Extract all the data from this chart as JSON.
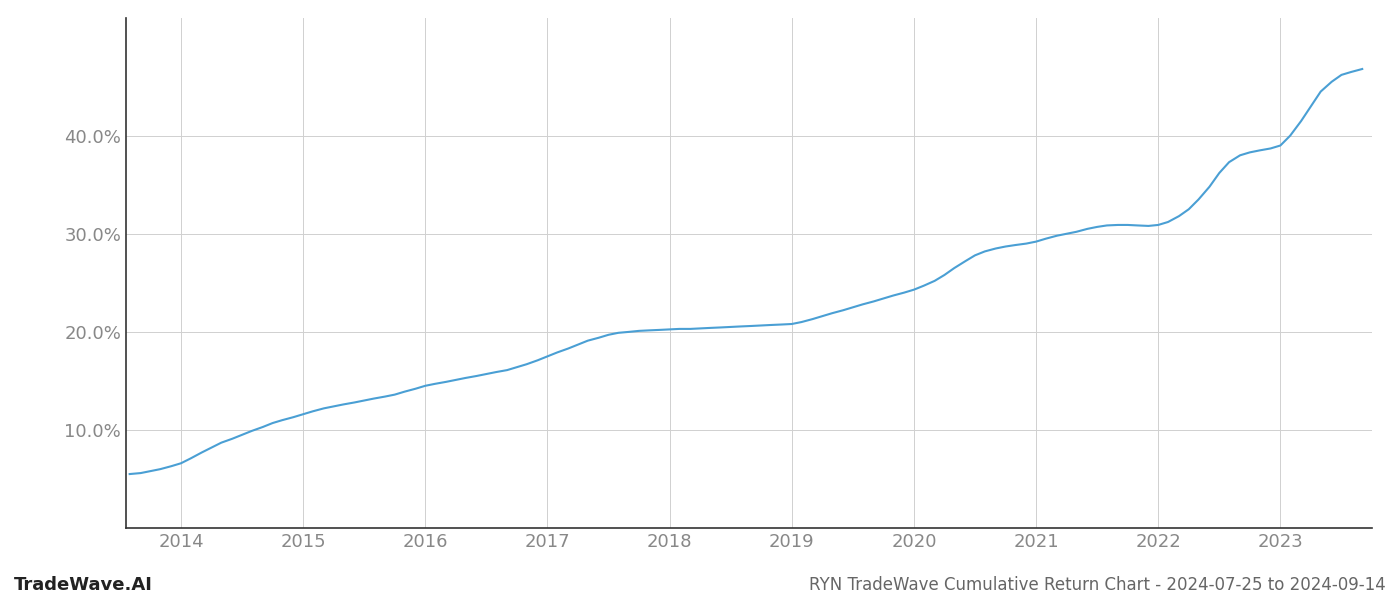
{
  "title": "RYN TradeWave Cumulative Return Chart - 2024-07-25 to 2024-09-14",
  "watermark": "TradeWave.AI",
  "line_color": "#4a9fd4",
  "background_color": "#ffffff",
  "grid_color": "#d0d0d0",
  "axis_color": "#888888",
  "spine_color": "#333333",
  "x_values": [
    2013.58,
    2013.67,
    2013.75,
    2013.83,
    2013.92,
    2014.0,
    2014.08,
    2014.17,
    2014.25,
    2014.33,
    2014.42,
    2014.5,
    2014.58,
    2014.67,
    2014.75,
    2014.83,
    2014.92,
    2015.0,
    2015.08,
    2015.17,
    2015.25,
    2015.33,
    2015.42,
    2015.5,
    2015.58,
    2015.67,
    2015.75,
    2015.83,
    2015.92,
    2016.0,
    2016.08,
    2016.17,
    2016.25,
    2016.33,
    2016.42,
    2016.5,
    2016.58,
    2016.67,
    2016.75,
    2016.83,
    2016.92,
    2017.0,
    2017.08,
    2017.17,
    2017.25,
    2017.33,
    2017.42,
    2017.5,
    2017.58,
    2017.67,
    2017.75,
    2017.83,
    2017.92,
    2018.0,
    2018.08,
    2018.17,
    2018.25,
    2018.33,
    2018.42,
    2018.5,
    2018.58,
    2018.67,
    2018.75,
    2018.83,
    2018.92,
    2019.0,
    2019.08,
    2019.17,
    2019.25,
    2019.33,
    2019.42,
    2019.5,
    2019.58,
    2019.67,
    2019.75,
    2019.83,
    2019.92,
    2020.0,
    2020.08,
    2020.17,
    2020.25,
    2020.33,
    2020.42,
    2020.5,
    2020.58,
    2020.67,
    2020.75,
    2020.83,
    2020.92,
    2021.0,
    2021.08,
    2021.17,
    2021.25,
    2021.33,
    2021.42,
    2021.5,
    2021.58,
    2021.67,
    2021.75,
    2021.83,
    2021.92,
    2022.0,
    2022.08,
    2022.17,
    2022.25,
    2022.33,
    2022.42,
    2022.5,
    2022.58,
    2022.67,
    2022.75,
    2022.83,
    2022.92,
    2023.0,
    2023.08,
    2023.17,
    2023.25,
    2023.33,
    2023.42,
    2023.5,
    2023.58,
    2023.67
  ],
  "y_values": [
    5.5,
    5.6,
    5.8,
    6.0,
    6.3,
    6.6,
    7.1,
    7.7,
    8.2,
    8.7,
    9.1,
    9.5,
    9.9,
    10.3,
    10.7,
    11.0,
    11.3,
    11.6,
    11.9,
    12.2,
    12.4,
    12.6,
    12.8,
    13.0,
    13.2,
    13.4,
    13.6,
    13.9,
    14.2,
    14.5,
    14.7,
    14.9,
    15.1,
    15.3,
    15.5,
    15.7,
    15.9,
    16.1,
    16.4,
    16.7,
    17.1,
    17.5,
    17.9,
    18.3,
    18.7,
    19.1,
    19.4,
    19.7,
    19.9,
    20.0,
    20.1,
    20.15,
    20.2,
    20.25,
    20.3,
    20.3,
    20.35,
    20.4,
    20.45,
    20.5,
    20.55,
    20.6,
    20.65,
    20.7,
    20.75,
    20.8,
    21.0,
    21.3,
    21.6,
    21.9,
    22.2,
    22.5,
    22.8,
    23.1,
    23.4,
    23.7,
    24.0,
    24.3,
    24.7,
    25.2,
    25.8,
    26.5,
    27.2,
    27.8,
    28.2,
    28.5,
    28.7,
    28.85,
    29.0,
    29.2,
    29.5,
    29.8,
    30.0,
    30.2,
    30.5,
    30.7,
    30.85,
    30.9,
    30.9,
    30.85,
    30.8,
    30.9,
    31.2,
    31.8,
    32.5,
    33.5,
    34.8,
    36.2,
    37.3,
    38.0,
    38.3,
    38.5,
    38.7,
    39.0,
    40.0,
    41.5,
    43.0,
    44.5,
    45.5,
    46.2,
    46.5,
    46.8
  ],
  "xlim": [
    2013.55,
    2023.75
  ],
  "ylim": [
    0,
    52
  ],
  "yticks": [
    10.0,
    20.0,
    30.0,
    40.0
  ],
  "xticks": [
    2014,
    2015,
    2016,
    2017,
    2018,
    2019,
    2020,
    2021,
    2022,
    2023
  ],
  "line_width": 1.5,
  "tick_fontsize": 13,
  "title_fontsize": 12,
  "watermark_fontsize": 13
}
